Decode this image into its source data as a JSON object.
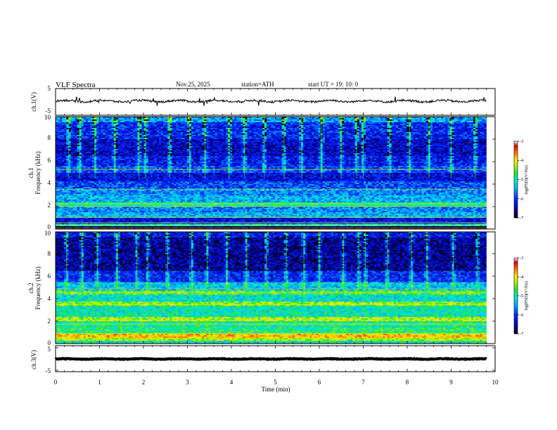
{
  "header": {
    "title": "VLF  Spectra",
    "date": "Nov.25, 2025",
    "station": "station=ATH",
    "start_ut": "start  UT  =    19: 10: 0"
  },
  "chart_data": [
    {
      "type": "line",
      "name": "ch1-waveform",
      "ylabel": "ch.1(V)",
      "ylim": [
        -5,
        5
      ],
      "ytick_labels": [
        "5",
        "-5"
      ],
      "xlim": [
        0,
        10
      ],
      "x_extent_min": [
        0,
        9.8
      ],
      "baseline_v": 0.3,
      "noise_v": 0.5
    },
    {
      "type": "heatmap",
      "name": "ch1-spectrogram",
      "ylabel": "ch.1\nFrequency  (kHz)",
      "ylim": [
        0,
        10
      ],
      "ytick_labels": [
        "0",
        "2",
        "4",
        "6",
        "8",
        "10"
      ],
      "xlim": [
        0,
        10
      ],
      "x_extent_min": [
        0,
        9.8
      ],
      "colorbar": {
        "label": "log(PSD)(V²/Hz)",
        "range": [
          -7,
          -3
        ],
        "tick_labels": [
          "-3",
          "-4",
          "-5",
          "-6",
          "-7"
        ]
      },
      "bands": [
        {
          "f": [
            0,
            0.25
          ],
          "v": -7.0
        },
        {
          "f": [
            0.25,
            0.5
          ],
          "v": -5.2
        },
        {
          "f": [
            0.5,
            1.0
          ],
          "v": -6.3
        },
        {
          "f": [
            1.0,
            1.5
          ],
          "v": -5.4
        },
        {
          "f": [
            1.5,
            2.0
          ],
          "v": -5.6
        },
        {
          "f": [
            2.0,
            2.4
          ],
          "v": -4.9
        },
        {
          "f": [
            2.4,
            3.0
          ],
          "v": -5.4
        },
        {
          "f": [
            3.0,
            3.6
          ],
          "v": -5.6
        },
        {
          "f": [
            3.6,
            4.2
          ],
          "v": -5.9
        },
        {
          "f": [
            4.2,
            5.0
          ],
          "v": -6.3
        },
        {
          "f": [
            5.0,
            5.6
          ],
          "v": -5.9
        },
        {
          "f": [
            5.6,
            6.5
          ],
          "v": -6.2
        },
        {
          "f": [
            6.5,
            8.0
          ],
          "v": -6.4
        },
        {
          "f": [
            8.0,
            9.5
          ],
          "v": -6.1
        },
        {
          "f": [
            9.5,
            10.0
          ],
          "v": -5.5
        }
      ],
      "lines_khz": [
        0.1,
        0.35,
        0.6,
        1.05,
        2.0,
        2.25,
        3.5,
        5.3
      ],
      "sferic_minutes": [
        0.3,
        0.55,
        0.9,
        1.35,
        1.9,
        2.05,
        2.6,
        3.05,
        3.4,
        3.95,
        4.3,
        4.75,
        5.2,
        5.6,
        6.05,
        6.5,
        6.85,
        7.0,
        7.6,
        8.05,
        8.5,
        9.0,
        9.55
      ]
    },
    {
      "type": "heatmap",
      "name": "ch2-spectrogram",
      "ylabel": "ch.2\nFrequency  (kHz)",
      "ylim": [
        0,
        10
      ],
      "ytick_labels": [
        "0",
        "2",
        "4",
        "6",
        "8",
        "10"
      ],
      "xlim": [
        0,
        10
      ],
      "x_extent_min": [
        0,
        9.8
      ],
      "colorbar": {
        "label": "log(PSD)(V²/Hz)",
        "range": [
          -7,
          -3
        ],
        "tick_labels": [
          "-3",
          "-4",
          "-5",
          "-6",
          "-7"
        ]
      },
      "bands": [
        {
          "f": [
            0,
            0.2
          ],
          "v": -5.0
        },
        {
          "f": [
            0.2,
            0.45
          ],
          "v": -4.3
        },
        {
          "f": [
            0.45,
            0.9
          ],
          "v": -3.9
        },
        {
          "f": [
            0.9,
            1.4
          ],
          "v": -4.8
        },
        {
          "f": [
            1.4,
            2.0
          ],
          "v": -4.9
        },
        {
          "f": [
            2.0,
            2.4
          ],
          "v": -4.3
        },
        {
          "f": [
            2.4,
            3.4
          ],
          "v": -5.0
        },
        {
          "f": [
            3.4,
            3.7
          ],
          "v": -4.4
        },
        {
          "f": [
            3.7,
            4.4
          ],
          "v": -5.1
        },
        {
          "f": [
            4.4,
            4.7
          ],
          "v": -4.6
        },
        {
          "f": [
            4.7,
            5.5
          ],
          "v": -5.3
        },
        {
          "f": [
            5.5,
            6.5
          ],
          "v": -6.1
        },
        {
          "f": [
            6.5,
            9.5
          ],
          "v": -6.6
        },
        {
          "f": [
            9.5,
            10.0
          ],
          "v": -6.2
        }
      ],
      "lines_khz": [
        0.5,
        0.9,
        1.75,
        2.1,
        3.5,
        4.55,
        4.9
      ],
      "sferic_minutes": [
        0.25,
        0.6,
        0.95,
        1.4,
        1.85,
        2.1,
        2.55,
        3.1,
        3.45,
        3.9,
        4.35,
        4.8,
        5.25,
        5.65,
        6.0,
        6.55,
        6.9,
        7.05,
        7.55,
        8.1,
        8.45,
        9.05,
        9.6
      ]
    },
    {
      "type": "line",
      "name": "ch3-waveform",
      "ylabel": "ch.3(V)",
      "ylim": [
        -5,
        5
      ],
      "ytick_labels": [
        "5",
        "-5"
      ],
      "xlim": [
        0,
        10
      ],
      "x_extent_min": [
        0,
        9.8
      ],
      "baseline_v": -0.1,
      "noise_v": 0.15
    }
  ],
  "x_axis": {
    "label": "Time  (min)",
    "ticks": [
      0,
      1,
      2,
      3,
      4,
      5,
      6,
      7,
      8,
      9,
      10
    ],
    "tick_labels": [
      "0",
      "1",
      "2",
      "3",
      "4",
      "5",
      "6",
      "7",
      "8",
      "9",
      "10"
    ]
  }
}
